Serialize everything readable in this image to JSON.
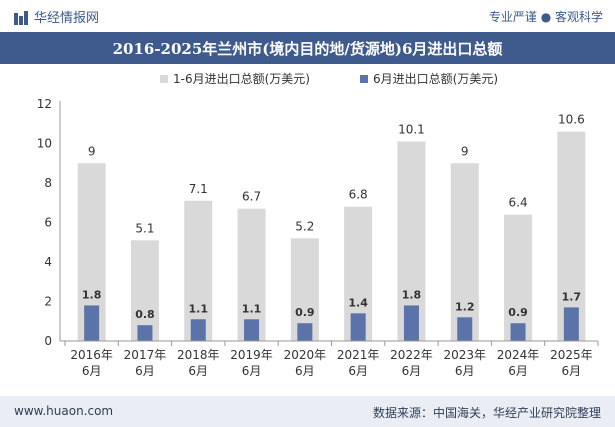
{
  "header": {
    "brand": "华经情报网",
    "tagline": "专业严谨 ● 客观科学"
  },
  "footer": {
    "website": "www.huaon.com",
    "source": "数据来源：中国海关，华经产业研究院整理"
  },
  "colors": {
    "title_bg": "#3f5b8e",
    "series1": "#d9d9d9",
    "series2": "#5b73a8"
  },
  "chart_data": {
    "type": "bar",
    "title": "2016-2025年兰州市(境内目的地/货源地)6月进出口总额",
    "categories": [
      [
        "2016年",
        "6月"
      ],
      [
        "2017年",
        "6月"
      ],
      [
        "2018年",
        "6月"
      ],
      [
        "2019年",
        "6月"
      ],
      [
        "2020年",
        "6月"
      ],
      [
        "2021年",
        "6月"
      ],
      [
        "2022年",
        "6月"
      ],
      [
        "2023年",
        "6月"
      ],
      [
        "2024年",
        "6月"
      ],
      [
        "2025年",
        "6月"
      ]
    ],
    "series": [
      {
        "name": "1-6月进出口总额(万美元)",
        "values": [
          9,
          5.1,
          7.1,
          6.7,
          5.2,
          6.8,
          10.1,
          9,
          6.4,
          10.6
        ]
      },
      {
        "name": "6月进出口总额(万美元)",
        "values": [
          1.8,
          0.8,
          1.1,
          1.1,
          0.9,
          1.4,
          1.8,
          1.2,
          0.9,
          1.7
        ]
      }
    ],
    "ylim": [
      0,
      12
    ],
    "yticks": [
      0,
      2,
      4,
      6,
      8,
      10,
      12
    ],
    "legend_position": "top-center",
    "grid": false
  }
}
